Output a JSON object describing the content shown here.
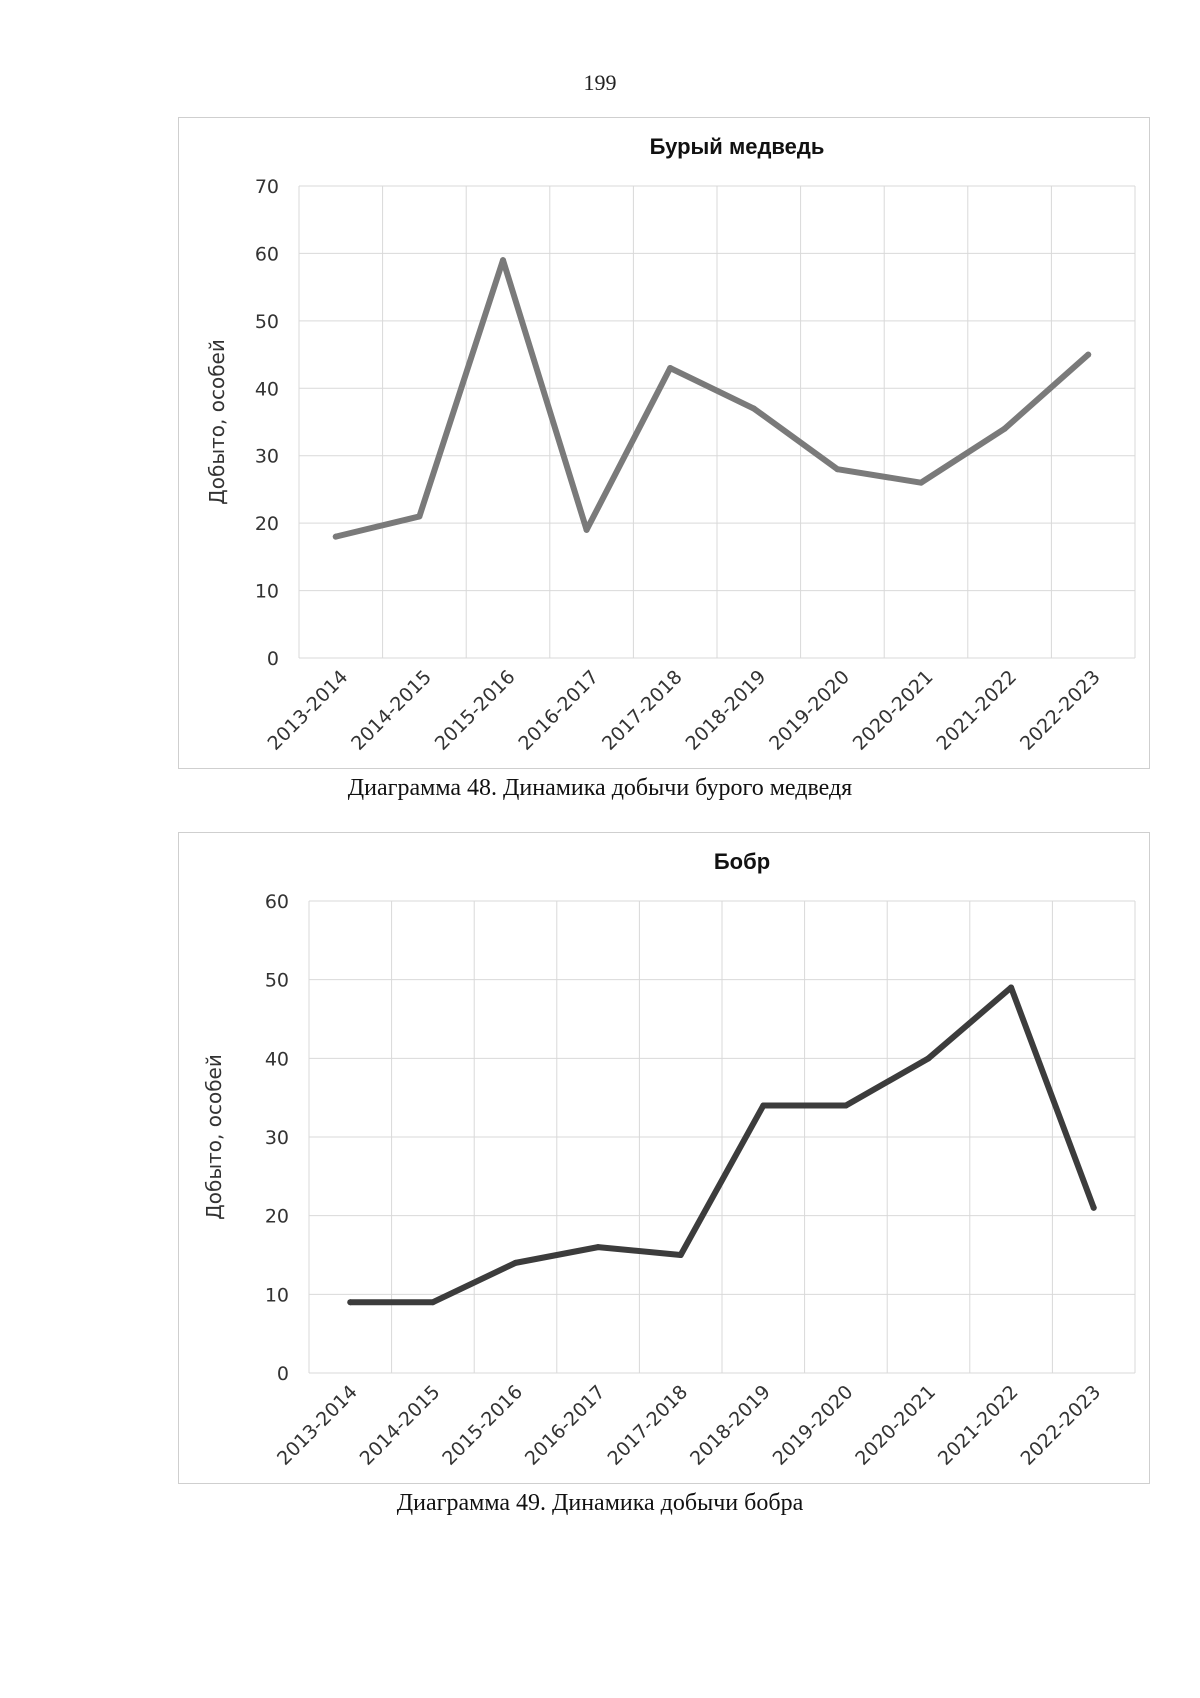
{
  "page_number": "199",
  "chart_data": [
    {
      "type": "line",
      "title": "Бурый медведь",
      "xlabel": "",
      "ylabel": "Добыто, особей",
      "categories": [
        "2013-2014",
        "2014-2015",
        "2015-2016",
        "2016-2017",
        "2017-2018",
        "2018-2019",
        "2019-2020",
        "2020-2021",
        "2021-2022",
        "2022-2023"
      ],
      "series": [
        {
          "name": "Бурый медведь",
          "values": [
            18,
            21,
            59,
            19,
            43,
            37,
            28,
            26,
            34,
            45
          ]
        }
      ],
      "ylim": [
        0,
        70
      ],
      "yticks": [
        0,
        10,
        20,
        30,
        40,
        50,
        60,
        70
      ],
      "grid": true,
      "line_color": "#7a7a7a",
      "caption": "Диаграмма 48. Динамика добычи бурого медведя"
    },
    {
      "type": "line",
      "title": "Бобр",
      "xlabel": "",
      "ylabel": "Добыто, особей",
      "categories": [
        "2013-2014",
        "2014-2015",
        "2015-2016",
        "2016-2017",
        "2017-2018",
        "2018-2019",
        "2019-2020",
        "2020-2021",
        "2021-2022",
        "2022-2023"
      ],
      "series": [
        {
          "name": "Бобр",
          "values": [
            9,
            9,
            14,
            16,
            15,
            34,
            34,
            40,
            49,
            21
          ]
        }
      ],
      "ylim": [
        0,
        60
      ],
      "yticks": [
        0,
        10,
        20,
        30,
        40,
        50,
        60
      ],
      "grid": true,
      "line_color": "#3c3c3c",
      "caption": "Диаграмма 49. Динамика добычи бобра"
    }
  ]
}
